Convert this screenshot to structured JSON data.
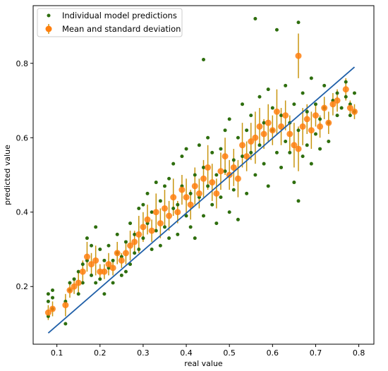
{
  "chart_data": {
    "type": "scatter",
    "xlabel": "real value",
    "ylabel": "predicted value",
    "xlim": [
      0.045,
      0.835
    ],
    "ylim": [
      0.045,
      0.955
    ],
    "xticks": [
      "0.1",
      "0.2",
      "0.3",
      "0.4",
      "0.5",
      "0.6",
      "0.7",
      "0.8"
    ],
    "yticks": [
      "0.2",
      "0.4",
      "0.6",
      "0.8"
    ],
    "legend_position": "top-left",
    "grid": false,
    "reference_line": {
      "label": "",
      "color": "#1f5fa8",
      "points": [
        [
          0.08,
          0.075
        ],
        [
          0.79,
          0.79
        ]
      ]
    },
    "series": [
      {
        "name": "Individual model predictions",
        "color": "#2e6e0e",
        "marker": "dot",
        "points": [
          [
            0.08,
            0.12
          ],
          [
            0.08,
            0.16
          ],
          [
            0.08,
            0.18
          ],
          [
            0.09,
            0.17
          ],
          [
            0.09,
            0.14
          ],
          [
            0.09,
            0.19
          ],
          [
            0.12,
            0.1
          ],
          [
            0.12,
            0.16
          ],
          [
            0.13,
            0.19
          ],
          [
            0.13,
            0.21
          ],
          [
            0.14,
            0.22
          ],
          [
            0.15,
            0.24
          ],
          [
            0.15,
            0.18
          ],
          [
            0.16,
            0.26
          ],
          [
            0.16,
            0.21
          ],
          [
            0.17,
            0.33
          ],
          [
            0.17,
            0.27
          ],
          [
            0.18,
            0.23
          ],
          [
            0.18,
            0.31
          ],
          [
            0.19,
            0.36
          ],
          [
            0.19,
            0.21
          ],
          [
            0.2,
            0.22
          ],
          [
            0.2,
            0.3
          ],
          [
            0.21,
            0.27
          ],
          [
            0.21,
            0.18
          ],
          [
            0.22,
            0.25
          ],
          [
            0.22,
            0.31
          ],
          [
            0.23,
            0.27
          ],
          [
            0.23,
            0.21
          ],
          [
            0.24,
            0.29
          ],
          [
            0.24,
            0.34
          ],
          [
            0.25,
            0.28
          ],
          [
            0.25,
            0.23
          ],
          [
            0.26,
            0.24
          ],
          [
            0.26,
            0.32
          ],
          [
            0.27,
            0.37
          ],
          [
            0.27,
            0.26
          ],
          [
            0.28,
            0.34
          ],
          [
            0.28,
            0.29
          ],
          [
            0.29,
            0.41
          ],
          [
            0.29,
            0.3
          ],
          [
            0.3,
            0.42
          ],
          [
            0.3,
            0.33
          ],
          [
            0.31,
            0.37
          ],
          [
            0.31,
            0.45
          ],
          [
            0.32,
            0.4
          ],
          [
            0.32,
            0.3
          ],
          [
            0.33,
            0.35
          ],
          [
            0.33,
            0.48
          ],
          [
            0.34,
            0.43
          ],
          [
            0.34,
            0.31
          ],
          [
            0.35,
            0.47
          ],
          [
            0.35,
            0.36
          ],
          [
            0.36,
            0.49
          ],
          [
            0.36,
            0.33
          ],
          [
            0.37,
            0.41
          ],
          [
            0.37,
            0.53
          ],
          [
            0.38,
            0.42
          ],
          [
            0.38,
            0.34
          ],
          [
            0.39,
            0.47
          ],
          [
            0.39,
            0.55
          ],
          [
            0.4,
            0.39
          ],
          [
            0.4,
            0.57
          ],
          [
            0.41,
            0.45
          ],
          [
            0.41,
            0.36
          ],
          [
            0.42,
            0.5
          ],
          [
            0.42,
            0.33
          ],
          [
            0.43,
            0.44
          ],
          [
            0.43,
            0.58
          ],
          [
            0.44,
            0.81
          ],
          [
            0.44,
            0.52
          ],
          [
            0.44,
            0.39
          ],
          [
            0.45,
            0.6
          ],
          [
            0.45,
            0.47
          ],
          [
            0.46,
            0.42
          ],
          [
            0.46,
            0.56
          ],
          [
            0.47,
            0.5
          ],
          [
            0.47,
            0.37
          ],
          [
            0.48,
            0.57
          ],
          [
            0.48,
            0.44
          ],
          [
            0.49,
            0.62
          ],
          [
            0.49,
            0.51
          ],
          [
            0.5,
            0.4
          ],
          [
            0.5,
            0.65
          ],
          [
            0.51,
            0.54
          ],
          [
            0.51,
            0.46
          ],
          [
            0.52,
            0.6
          ],
          [
            0.52,
            0.38
          ],
          [
            0.53,
            0.69
          ],
          [
            0.53,
            0.55
          ],
          [
            0.54,
            0.45
          ],
          [
            0.54,
            0.62
          ],
          [
            0.55,
            0.56
          ],
          [
            0.55,
            0.66
          ],
          [
            0.56,
            0.5
          ],
          [
            0.56,
            0.92
          ],
          [
            0.57,
            0.71
          ],
          [
            0.57,
            0.58
          ],
          [
            0.58,
            0.64
          ],
          [
            0.58,
            0.53
          ],
          [
            0.59,
            0.73
          ],
          [
            0.59,
            0.47
          ],
          [
            0.6,
            0.62
          ],
          [
            0.6,
            0.68
          ],
          [
            0.61,
            0.56
          ],
          [
            0.61,
            0.89
          ],
          [
            0.62,
            0.66
          ],
          [
            0.62,
            0.52
          ],
          [
            0.63,
            0.74
          ],
          [
            0.63,
            0.59
          ],
          [
            0.64,
            0.64
          ],
          [
            0.64,
            0.56
          ],
          [
            0.65,
            0.69
          ],
          [
            0.65,
            0.48
          ],
          [
            0.66,
            0.91
          ],
          [
            0.66,
            0.43
          ],
          [
            0.66,
            0.62
          ],
          [
            0.67,
            0.55
          ],
          [
            0.67,
            0.72
          ],
          [
            0.68,
            0.67
          ],
          [
            0.68,
            0.58
          ],
          [
            0.69,
            0.53
          ],
          [
            0.69,
            0.76
          ],
          [
            0.7,
            0.61
          ],
          [
            0.7,
            0.69
          ],
          [
            0.71,
            0.65
          ],
          [
            0.71,
            0.57
          ],
          [
            0.72,
            0.68
          ],
          [
            0.72,
            0.74
          ],
          [
            0.73,
            0.64
          ],
          [
            0.73,
            0.59
          ],
          [
            0.74,
            0.7
          ],
          [
            0.75,
            0.66
          ],
          [
            0.75,
            0.72
          ],
          [
            0.76,
            0.68
          ],
          [
            0.77,
            0.75
          ],
          [
            0.77,
            0.71
          ],
          [
            0.78,
            0.69
          ],
          [
            0.78,
            0.66
          ],
          [
            0.79,
            0.67
          ],
          [
            0.79,
            0.72
          ]
        ]
      },
      {
        "name": "Mean and standard deviation",
        "color": "#ff7f0e",
        "error_color": "#c8950f",
        "marker": "circle",
        "points": [
          [
            0.08,
            0.13,
            0.02
          ],
          [
            0.09,
            0.14,
            0.02
          ],
          [
            0.12,
            0.15,
            0.03
          ],
          [
            0.13,
            0.19,
            0.02
          ],
          [
            0.14,
            0.2,
            0.02
          ],
          [
            0.15,
            0.21,
            0.03
          ],
          [
            0.16,
            0.24,
            0.03
          ],
          [
            0.17,
            0.28,
            0.04
          ],
          [
            0.18,
            0.26,
            0.03
          ],
          [
            0.19,
            0.27,
            0.04
          ],
          [
            0.2,
            0.24,
            0.02
          ],
          [
            0.21,
            0.24,
            0.02
          ],
          [
            0.22,
            0.26,
            0.03
          ],
          [
            0.23,
            0.25,
            0.02
          ],
          [
            0.24,
            0.29,
            0.03
          ],
          [
            0.25,
            0.27,
            0.02
          ],
          [
            0.26,
            0.29,
            0.03
          ],
          [
            0.27,
            0.31,
            0.04
          ],
          [
            0.28,
            0.32,
            0.03
          ],
          [
            0.29,
            0.34,
            0.05
          ],
          [
            0.3,
            0.36,
            0.04
          ],
          [
            0.31,
            0.38,
            0.04
          ],
          [
            0.32,
            0.35,
            0.03
          ],
          [
            0.33,
            0.4,
            0.05
          ],
          [
            0.34,
            0.37,
            0.04
          ],
          [
            0.35,
            0.41,
            0.05
          ],
          [
            0.36,
            0.39,
            0.04
          ],
          [
            0.37,
            0.44,
            0.05
          ],
          [
            0.38,
            0.4,
            0.03
          ],
          [
            0.39,
            0.46,
            0.04
          ],
          [
            0.4,
            0.44,
            0.05
          ],
          [
            0.41,
            0.42,
            0.04
          ],
          [
            0.42,
            0.47,
            0.05
          ],
          [
            0.43,
            0.45,
            0.04
          ],
          [
            0.44,
            0.49,
            0.05
          ],
          [
            0.45,
            0.52,
            0.06
          ],
          [
            0.46,
            0.48,
            0.05
          ],
          [
            0.47,
            0.45,
            0.04
          ],
          [
            0.48,
            0.51,
            0.05
          ],
          [
            0.49,
            0.55,
            0.05
          ],
          [
            0.5,
            0.5,
            0.04
          ],
          [
            0.51,
            0.52,
            0.05
          ],
          [
            0.52,
            0.49,
            0.05
          ],
          [
            0.53,
            0.58,
            0.06
          ],
          [
            0.54,
            0.55,
            0.04
          ],
          [
            0.55,
            0.59,
            0.05
          ],
          [
            0.56,
            0.6,
            0.07
          ],
          [
            0.57,
            0.63,
            0.05
          ],
          [
            0.58,
            0.61,
            0.04
          ],
          [
            0.59,
            0.64,
            0.05
          ],
          [
            0.6,
            0.62,
            0.04
          ],
          [
            0.61,
            0.67,
            0.06
          ],
          [
            0.62,
            0.63,
            0.05
          ],
          [
            0.63,
            0.66,
            0.04
          ],
          [
            0.64,
            0.61,
            0.05
          ],
          [
            0.65,
            0.58,
            0.06
          ],
          [
            0.66,
            0.82,
            0.06
          ],
          [
            0.66,
            0.57,
            0.06
          ],
          [
            0.67,
            0.63,
            0.05
          ],
          [
            0.68,
            0.65,
            0.04
          ],
          [
            0.69,
            0.62,
            0.05
          ],
          [
            0.7,
            0.66,
            0.03
          ],
          [
            0.71,
            0.63,
            0.03
          ],
          [
            0.72,
            0.68,
            0.03
          ],
          [
            0.73,
            0.64,
            0.03
          ],
          [
            0.74,
            0.69,
            0.03
          ],
          [
            0.75,
            0.7,
            0.03
          ],
          [
            0.77,
            0.73,
            0.03
          ],
          [
            0.78,
            0.68,
            0.02
          ],
          [
            0.79,
            0.67,
            0.02
          ]
        ]
      }
    ]
  }
}
